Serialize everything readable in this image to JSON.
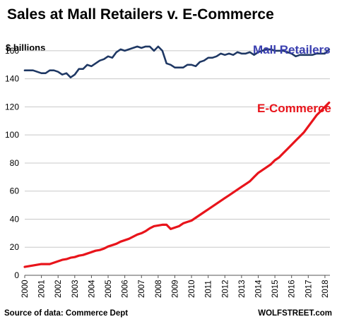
{
  "chart_data": {
    "type": "line",
    "title": "Sales at Mall Retailers v. E-Commerce",
    "unit_label": "$ billions",
    "ylim": [
      0,
      170
    ],
    "yticks": [
      0,
      20,
      40,
      60,
      80,
      100,
      120,
      140,
      160
    ],
    "xlim": [
      2000,
      2018.3
    ],
    "xticks": [
      "2000",
      "2001",
      "2002",
      "2003",
      "2004",
      "2005",
      "2006",
      "2007",
      "2008",
      "2009",
      "2010",
      "2011",
      "2012",
      "2013",
      "2014",
      "2015",
      "2016",
      "2017",
      "2018"
    ],
    "grid": true,
    "series": [
      {
        "name": "Mall Retailers",
        "color": "#1f3864",
        "x": [
          2000,
          2000.25,
          2000.5,
          2000.75,
          2001,
          2001.25,
          2001.5,
          2001.75,
          2002,
          2002.25,
          2002.5,
          2002.75,
          2003,
          2003.25,
          2003.5,
          2003.75,
          2004,
          2004.25,
          2004.5,
          2004.75,
          2005,
          2005.25,
          2005.5,
          2005.75,
          2006,
          2006.25,
          2006.5,
          2006.75,
          2007,
          2007.25,
          2007.5,
          2007.75,
          2008,
          2008.25,
          2008.5,
          2008.75,
          2009,
          2009.25,
          2009.5,
          2009.75,
          2010,
          2010.25,
          2010.5,
          2010.75,
          2011,
          2011.25,
          2011.5,
          2011.75,
          2012,
          2012.25,
          2012.5,
          2012.75,
          2013,
          2013.25,
          2013.5,
          2013.75,
          2014,
          2014.25,
          2014.5,
          2014.75,
          2015,
          2015.25,
          2015.5,
          2015.75,
          2016,
          2016.25,
          2016.5,
          2016.75,
          2017,
          2017.25,
          2017.5,
          2017.75,
          2018,
          2018.25
        ],
        "values": [
          146,
          146,
          146,
          145,
          144,
          144,
          146,
          146,
          145,
          143,
          144,
          141,
          143,
          147,
          147,
          150,
          149,
          151,
          153,
          154,
          156,
          155,
          159,
          161,
          160,
          161,
          162,
          163,
          162,
          163,
          163,
          160,
          163,
          160,
          151,
          150,
          148,
          148,
          148,
          150,
          150,
          149,
          152,
          153,
          155,
          155,
          156,
          158,
          157,
          158,
          157,
          159,
          158,
          158,
          159,
          157,
          159,
          160,
          161,
          161,
          160,
          160,
          160,
          159,
          158,
          156,
          157,
          157,
          157,
          157,
          158,
          158,
          158,
          161
        ]
      },
      {
        "name": "E-Commerce",
        "color": "#e8141b",
        "x": [
          2000,
          2000.25,
          2000.5,
          2000.75,
          2001,
          2001.25,
          2001.5,
          2001.75,
          2002,
          2002.25,
          2002.5,
          2002.75,
          2003,
          2003.25,
          2003.5,
          2003.75,
          2004,
          2004.25,
          2004.5,
          2004.75,
          2005,
          2005.25,
          2005.5,
          2005.75,
          2006,
          2006.25,
          2006.5,
          2006.75,
          2007,
          2007.25,
          2007.5,
          2007.75,
          2008,
          2008.25,
          2008.5,
          2008.75,
          2009,
          2009.25,
          2009.5,
          2009.75,
          2010,
          2010.25,
          2010.5,
          2010.75,
          2011,
          2011.25,
          2011.5,
          2011.75,
          2012,
          2012.25,
          2012.5,
          2012.75,
          2013,
          2013.25,
          2013.5,
          2013.75,
          2014,
          2014.25,
          2014.5,
          2014.75,
          2015,
          2015.25,
          2015.5,
          2015.75,
          2016,
          2016.25,
          2016.5,
          2016.75,
          2017,
          2017.25,
          2017.5,
          2017.75,
          2018,
          2018.25
        ],
        "values": [
          6,
          6.5,
          7,
          7.5,
          8,
          8,
          8,
          9,
          10,
          11,
          11.5,
          12.5,
          13,
          14,
          14.5,
          15.5,
          16.5,
          17.5,
          18,
          19,
          20.5,
          21.5,
          22.5,
          24,
          25,
          26,
          27.5,
          29,
          30,
          31.5,
          33.5,
          35,
          35.5,
          36,
          36,
          33,
          34,
          35,
          37,
          38,
          39,
          41,
          43,
          45,
          47,
          49,
          51,
          53,
          55,
          57,
          59,
          61,
          63,
          65,
          67,
          70,
          73,
          75,
          77,
          79,
          82,
          84,
          87,
          90,
          93,
          96,
          99,
          102,
          106,
          110,
          114,
          117,
          120,
          123
        ]
      }
    ],
    "source": "Source of data: Commerce Dept",
    "credit": "WOLFSTREET.com"
  }
}
